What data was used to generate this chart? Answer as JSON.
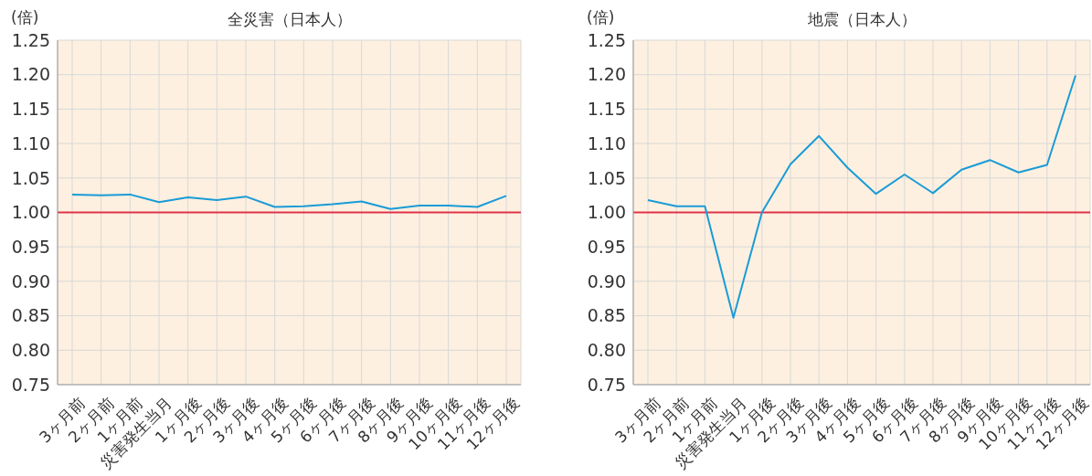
{
  "chart_data": [
    {
      "type": "line",
      "title": "全災害（日本人）",
      "ylabel": "(倍)",
      "categories": [
        "3ヶ月前",
        "2ヶ月前",
        "1ヶ月前",
        "災害発生当月",
        "1ヶ月後",
        "2ヶ月後",
        "3ヶ月後",
        "4ヶ月後",
        "5ヶ月後",
        "6ヶ月後",
        "7ヶ月後",
        "8ヶ月後",
        "9ヶ月後",
        "10ヶ月後",
        "11ヶ月後",
        "12ヶ月後"
      ],
      "series": [
        {
          "color": "#1a9bd7",
          "values": [
            1.026,
            1.025,
            1.026,
            1.015,
            1.022,
            1.018,
            1.023,
            1.008,
            1.009,
            1.012,
            1.016,
            1.005,
            1.01,
            1.01,
            1.008,
            1.024
          ]
        }
      ],
      "ylim": [
        0.75,
        1.25
      ],
      "yticks": [
        {
          "value": 0.75,
          "label": "0.75"
        },
        {
          "value": 0.8,
          "label": "0.80"
        },
        {
          "value": 0.85,
          "label": "0.85"
        },
        {
          "value": 0.9,
          "label": "0.90"
        },
        {
          "value": 0.95,
          "label": "0.95"
        },
        {
          "value": 1,
          "label": "1.00"
        },
        {
          "value": 1.05,
          "label": "1.05"
        },
        {
          "value": 1.1,
          "label": "1.10"
        },
        {
          "value": 1.15,
          "label": "1.15"
        },
        {
          "value": 1.2,
          "label": "1.20"
        },
        {
          "value": 1.25,
          "label": "1.25"
        }
      ],
      "ref_lines": [
        {
          "axis": "y",
          "value": 1,
          "color": "#e0334a"
        }
      ],
      "grid": true,
      "legend": false,
      "marker": "none"
    },
    {
      "type": "line",
      "title": "地震（日本人）",
      "ylabel": "(倍)",
      "categories": [
        "3ヶ月前",
        "2ヶ月前",
        "1ヶ月前",
        "災害発生当月",
        "1ヶ月後",
        "2ヶ月後",
        "3ヶ月後",
        "4ヶ月後",
        "5ヶ月後",
        "6ヶ月後",
        "7ヶ月後",
        "8ヶ月後",
        "9ヶ月後",
        "10ヶ月後",
        "11ヶ月後",
        "12ヶ月後"
      ],
      "series": [
        {
          "color": "#1a9bd7",
          "values": [
            1.018,
            1.009,
            1.009,
            0.847,
            1.0,
            1.07,
            1.111,
            1.065,
            1.027,
            1.055,
            1.028,
            1.062,
            1.076,
            1.058,
            1.069,
            1.199
          ]
        }
      ],
      "ylim": [
        0.75,
        1.25
      ],
      "yticks": [
        {
          "value": 0.75,
          "label": "0.75"
        },
        {
          "value": 0.8,
          "label": "0.80"
        },
        {
          "value": 0.85,
          "label": "0.85"
        },
        {
          "value": 0.9,
          "label": "0.90"
        },
        {
          "value": 0.95,
          "label": "0.95"
        },
        {
          "value": 1,
          "label": "1.00"
        },
        {
          "value": 1.05,
          "label": "1.05"
        },
        {
          "value": 1.1,
          "label": "1.10"
        },
        {
          "value": 1.15,
          "label": "1.15"
        },
        {
          "value": 1.2,
          "label": "1.20"
        },
        {
          "value": 1.25,
          "label": "1.25"
        }
      ],
      "ref_lines": [
        {
          "axis": "y",
          "value": 1,
          "color": "#e0334a"
        }
      ],
      "grid": true,
      "legend": false,
      "marker": "none"
    }
  ]
}
